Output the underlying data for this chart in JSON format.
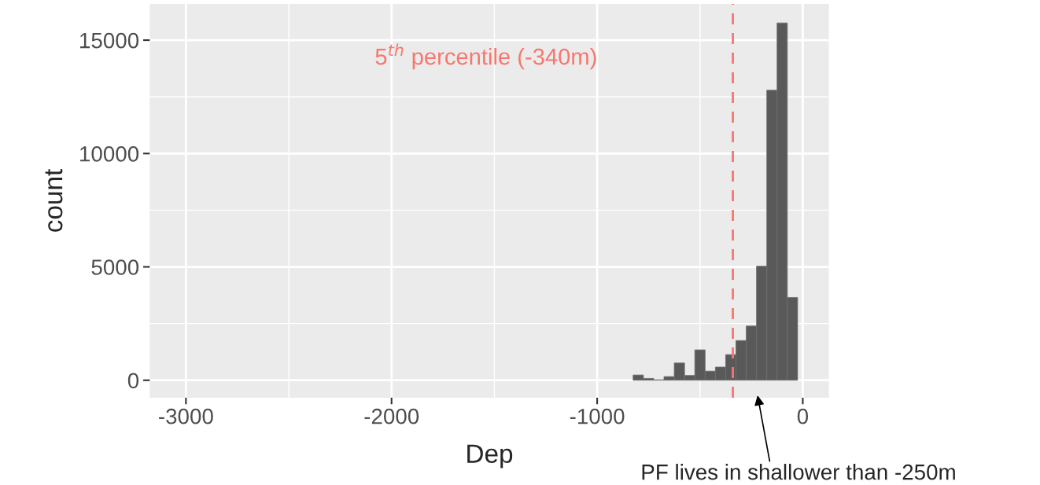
{
  "chart_data": {
    "type": "histogram",
    "xlabel": "Dep",
    "ylabel": "count",
    "bins": [
      -825,
      -775,
      -725,
      -675,
      -625,
      -575,
      -525,
      -475,
      -425,
      -375,
      -325,
      -275,
      -225,
      -175,
      -125,
      -75,
      -25
    ],
    "values": [
      230,
      80,
      20,
      160,
      760,
      210,
      1340,
      400,
      580,
      1130,
      1750,
      2390,
      5030,
      12790,
      15760,
      3650
    ],
    "color": "#595959",
    "xlim": [
      -3176,
      127
    ],
    "xticks": [
      -3000,
      -2000,
      -1000,
      0
    ],
    "ylim": [
      -770,
      16600
    ],
    "yticks": [
      0,
      5000,
      10000,
      15000
    ],
    "grid": true,
    "ref_lines": [
      {
        "axis": "x",
        "value": -340,
        "label": "5$^{th}$ percentile (-340m)",
        "color": "#f8766d",
        "line_style": "dashed"
      }
    ],
    "annotations": [
      "PF lives in shallower than -250m"
    ]
  }
}
